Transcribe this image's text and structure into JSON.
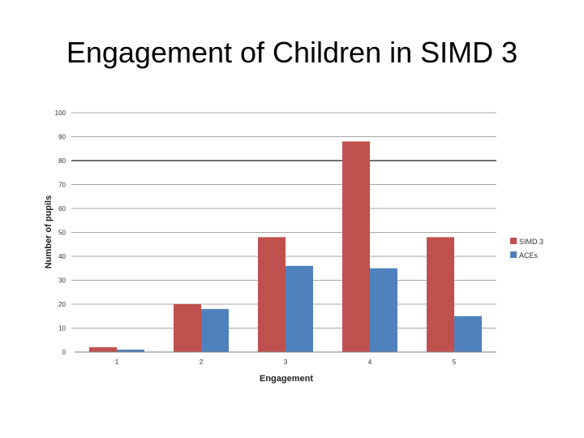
{
  "slide": {
    "title": "Engagement of Children in SIMD 3"
  },
  "colors": {
    "simd3": "#c0504d",
    "aces": "#4f81bd",
    "grid": "#a6a6a6",
    "grid_strong": "#404040"
  },
  "chart_data": {
    "type": "bar",
    "title": "",
    "xlabel": "Engagement",
    "ylabel": "Number of pupils",
    "categories": [
      "1",
      "2",
      "3",
      "4",
      "5"
    ],
    "ylim": [
      0,
      100
    ],
    "yticks": [
      "0",
      "10",
      "20",
      "30",
      "40",
      "50",
      "60",
      "70",
      "80",
      "90",
      "100"
    ],
    "grid": true,
    "legend_position": "right",
    "series": [
      {
        "name": "SIMD 3",
        "color": "#c0504d",
        "values": [
          2,
          20,
          48,
          88,
          48
        ]
      },
      {
        "name": "ACEs",
        "color": "#4f81bd",
        "values": [
          1,
          18,
          36,
          35,
          15
        ]
      }
    ]
  }
}
